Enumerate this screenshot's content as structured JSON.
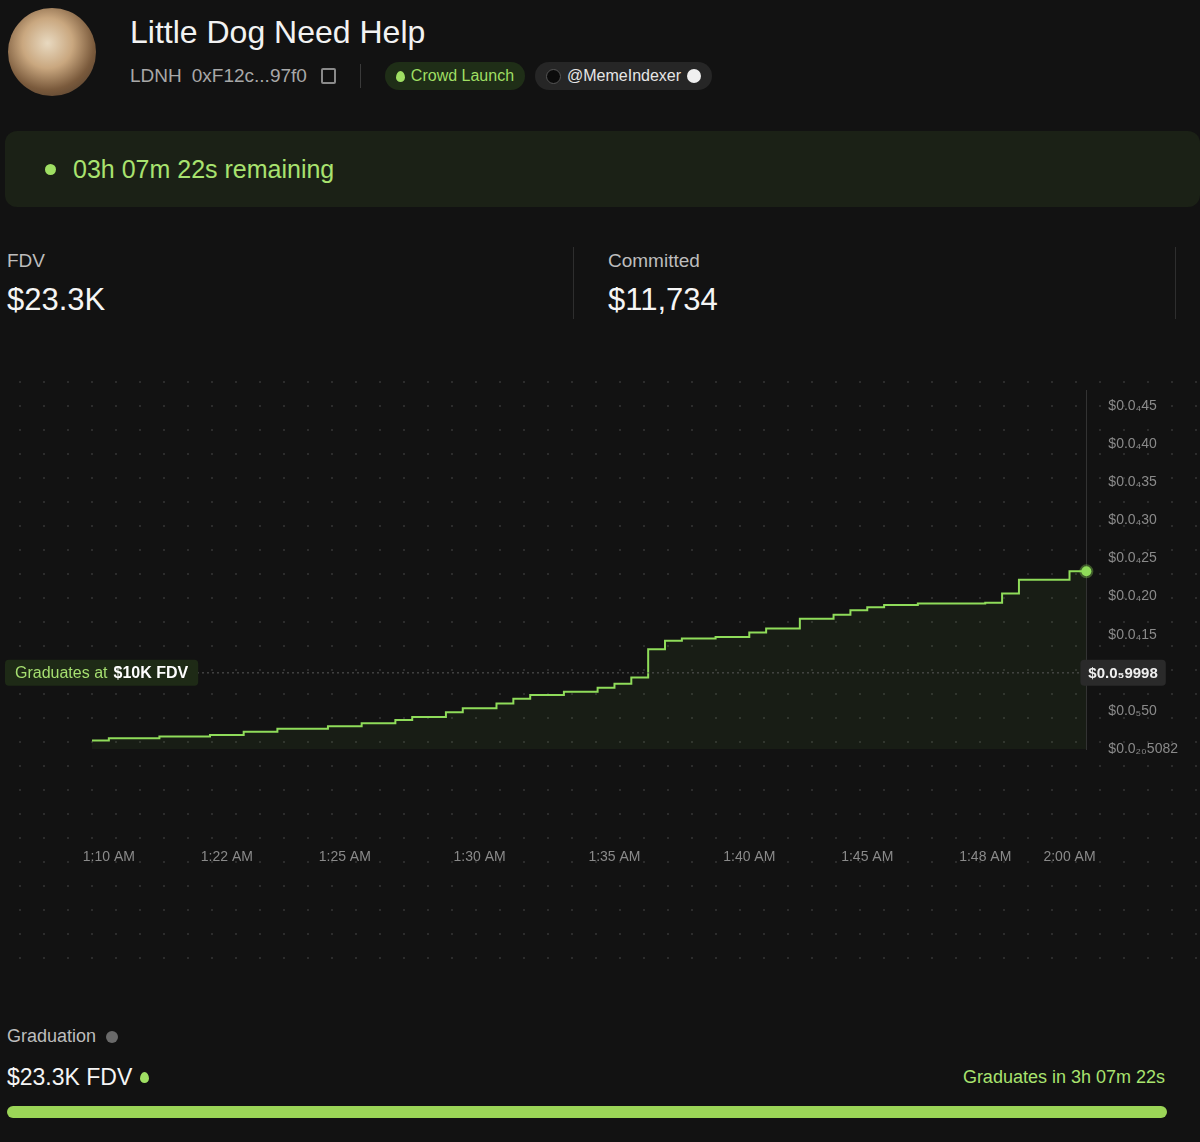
{
  "header": {
    "name": "Little Dog Need Help",
    "ticker": "LDNH",
    "address": "0xF12c...97f0",
    "badge": "Crowd Launch",
    "creator": "@MemeIndexer"
  },
  "timer": "03h 07m 22s remaining",
  "stats": [
    {
      "label": "FDV",
      "value": "$23.3K"
    },
    {
      "label": "Committed",
      "value": "$11,734"
    }
  ],
  "chart_data": {
    "type": "line",
    "line_style": "step",
    "color": "#8fdc5a",
    "grid": false,
    "categories": [
      null,
      "1:10 AM",
      null,
      null,
      null,
      null,
      null,
      null,
      "1:22 AM",
      null,
      null,
      null,
      null,
      null,
      null,
      "1:25 AM",
      null,
      null,
      null,
      null,
      null,
      null,
      null,
      "1:30 AM",
      null,
      null,
      null,
      null,
      null,
      null,
      null,
      "1:35 AM",
      null,
      null,
      null,
      null,
      null,
      null,
      null,
      "1:40 AM",
      null,
      null,
      null,
      null,
      null,
      null,
      "1:45 AM",
      null,
      null,
      null,
      null,
      null,
      null,
      "1:48 AM",
      null,
      null,
      null,
      null,
      "2:00 AM",
      null
    ],
    "values": [
      1.13e-06,
      1.13e-06,
      1.44e-06,
      1.44e-06,
      1.44e-06,
      1.65e-06,
      1.65e-06,
      1.65e-06,
      1.86e-06,
      1.86e-06,
      2.27e-06,
      2.27e-06,
      2.68e-06,
      2.68e-06,
      2.68e-06,
      2.99e-06,
      2.99e-06,
      3.4e-06,
      3.4e-06,
      3.81e-06,
      4.23e-06,
      4.23e-06,
      4.85e-06,
      5.36e-06,
      5.36e-06,
      5.98e-06,
      6.6e-06,
      7.11e-06,
      7.11e-06,
      7.53e-06,
      7.53e-06,
      8.04e-06,
      8.56e-06,
      9.38e-06,
      1.31e-05,
      1.42e-05,
      1.45e-05,
      1.45e-05,
      1.47e-05,
      1.47e-05,
      1.53e-05,
      1.58e-05,
      1.58e-05,
      1.71e-05,
      1.71e-05,
      1.76e-05,
      1.82e-05,
      1.86e-05,
      1.89e-05,
      1.89e-05,
      1.91e-05,
      1.91e-05,
      1.91e-05,
      1.91e-05,
      1.92e-05,
      2.04e-05,
      2.22e-05,
      2.22e-05,
      2.22e-05,
      2.33e-05
    ],
    "ylim": [
      0,
      4.7e-05
    ],
    "yticks": [
      {
        "value": 5.082e-21,
        "label": "$0.0₂₀5082"
      },
      {
        "value": 5e-06,
        "label": "$0.0₅50"
      },
      {
        "value": 1.5e-05,
        "label": "$0.0₄15"
      },
      {
        "value": 2e-05,
        "label": "$0.0₄20"
      },
      {
        "value": 2.5e-05,
        "label": "$0.0₄25"
      },
      {
        "value": 3e-05,
        "label": "$0.0₄30"
      },
      {
        "value": 3.5e-05,
        "label": "$0.0₄35"
      },
      {
        "value": 4e-05,
        "label": "$0.0₄40"
      },
      {
        "value": 4.5e-05,
        "label": "$0.0₄45"
      }
    ],
    "graduation_line": {
      "value": 9.998e-06,
      "label": "$0.0₅9998",
      "text": "Graduates at",
      "text_bold": "$10K FDV"
    }
  },
  "graduation": {
    "label": "Graduation",
    "value": "$23.3K FDV",
    "countdown": "Graduates in 3h 07m 22s"
  }
}
